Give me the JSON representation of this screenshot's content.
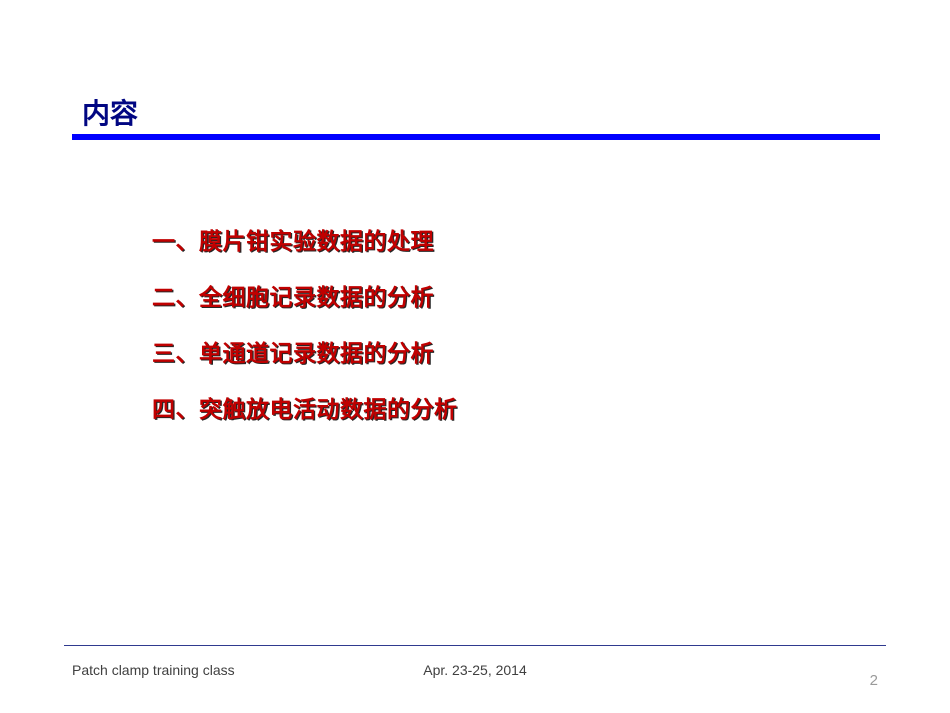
{
  "slide": {
    "title": "内容",
    "title_color": "#010682",
    "rule_color": "#0000ff",
    "items": [
      "一、膜片钳实验数据的处理",
      "二、全细胞记录数据的分析",
      "三、单通道记录数据的分析",
      "四、突触放电活动数据的分析"
    ],
    "item_color": "#c00000",
    "footer_left": "Patch clamp training class",
    "footer_center": "Apr. 23-25, 2014",
    "page_number": "2"
  }
}
